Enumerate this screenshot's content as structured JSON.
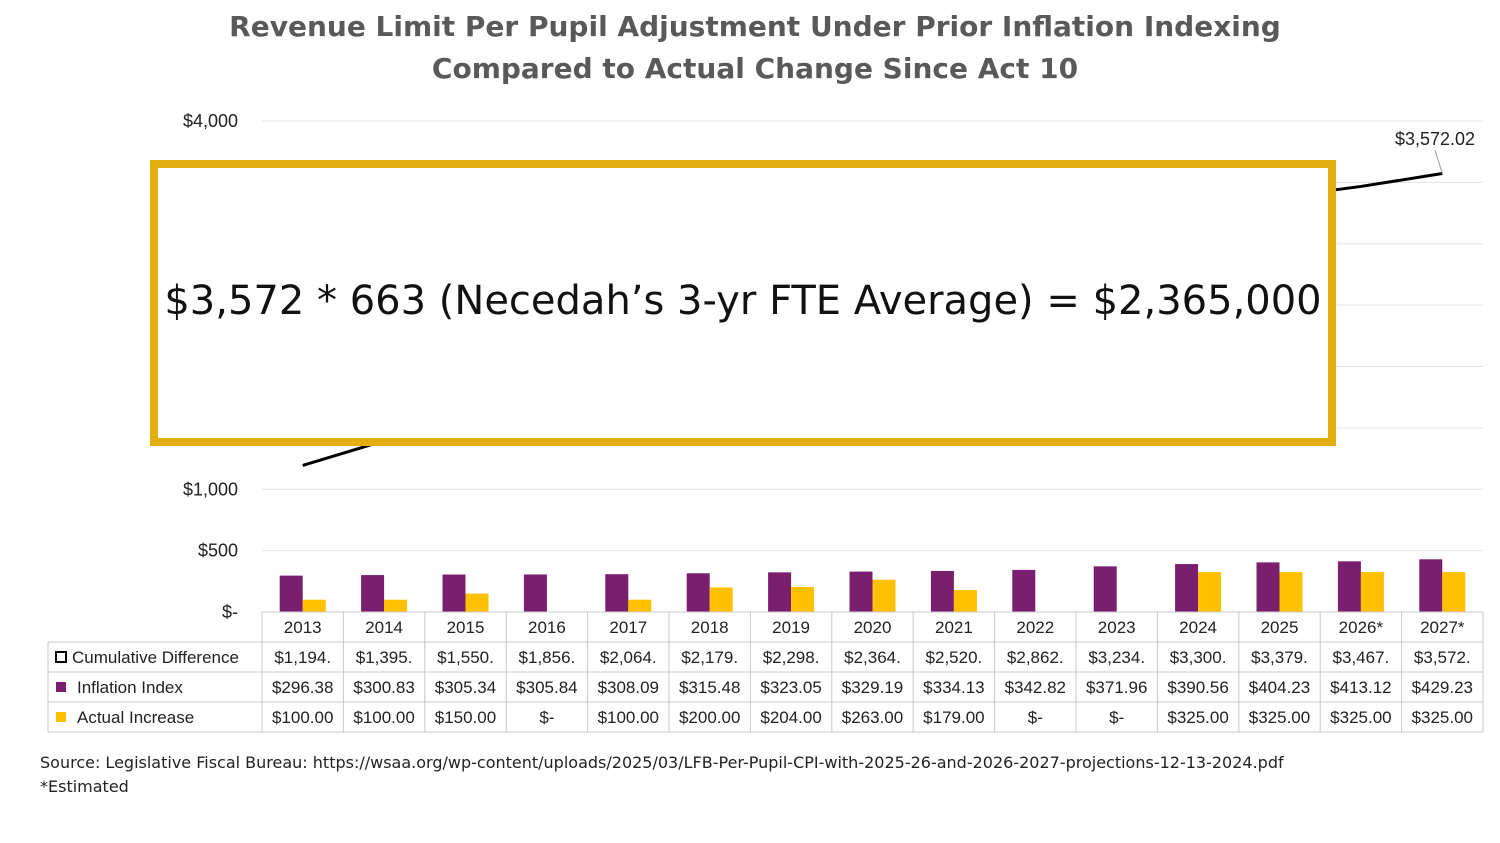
{
  "title_line1": "Revenue Limit Per Pupil Adjustment Under Prior Inflation Indexing",
  "title_line2": "Compared to Actual Change Since Act 10",
  "callout_text": "$3,572 * 663 (Necedah’s 3-yr FTE Average) = $2,365,000",
  "annotation_label": "$3,572.02",
  "source_line": "Source: Legislative Fiscal Bureau: https://wsaa.org/wp-content/uploads/2025/03/LFB-Per-Pupil-CPI-with-2025-26-and-2026-2027-projections-12-13-2024.pdf",
  "footnote": "*Estimated",
  "colors": {
    "inflation": "#7A1F6E",
    "actual": "#FFC000",
    "callout_border": "#E3AC0F",
    "line": "#000000"
  },
  "chart_data": {
    "type": "bar",
    "categories": [
      "2013",
      "2014",
      "2015",
      "2016",
      "2017",
      "2018",
      "2019",
      "2020",
      "2021",
      "2022",
      "2023",
      "2024",
      "2025",
      "2026*",
      "2027*"
    ],
    "ylim": [
      0,
      4000
    ],
    "y_ticks": [
      "$-",
      "$500",
      "$1,000",
      "$4,000"
    ],
    "series": [
      {
        "name": "Cumulative Difference",
        "type": "line",
        "values": [
          1194,
          1395,
          1550,
          1856,
          2064,
          2179,
          2298,
          2364,
          2520,
          2862,
          3234,
          3300,
          3379,
          3467,
          3572.02
        ],
        "labels": [
          "$1,194.",
          "$1,395.",
          "$1,550.",
          "$1,856.",
          "$2,064.",
          "$2,179.",
          "$2,298.",
          "$2,364.",
          "$2,520.",
          "$2,862.",
          "$3,234.",
          "$3,300.",
          "$3,379.",
          "$3,467.",
          "$3,572."
        ]
      },
      {
        "name": "Inflation Index",
        "type": "bar",
        "values": [
          296.38,
          300.83,
          305.34,
          305.84,
          308.09,
          315.48,
          323.05,
          329.19,
          334.13,
          342.82,
          371.96,
          390.56,
          404.23,
          413.12,
          429.23
        ],
        "labels": [
          "$296.38",
          "$300.83",
          "$305.34",
          "$305.84",
          "$308.09",
          "$315.48",
          "$323.05",
          "$329.19",
          "$334.13",
          "$342.82",
          "$371.96",
          "$390.56",
          "$404.23",
          "$413.12",
          "$429.23"
        ]
      },
      {
        "name": "Actual Increase",
        "type": "bar",
        "values": [
          100,
          100,
          150,
          0,
          100,
          200,
          204,
          263,
          179,
          0,
          0,
          325,
          325,
          325,
          325
        ],
        "labels": [
          "$100.00",
          "$100.00",
          "$150.00",
          "$-",
          "$100.00",
          "$200.00",
          "$204.00",
          "$263.00",
          "$179.00",
          "$-",
          "$-",
          "$325.00",
          "$325.00",
          "$325.00",
          "$325.00"
        ]
      }
    ]
  }
}
